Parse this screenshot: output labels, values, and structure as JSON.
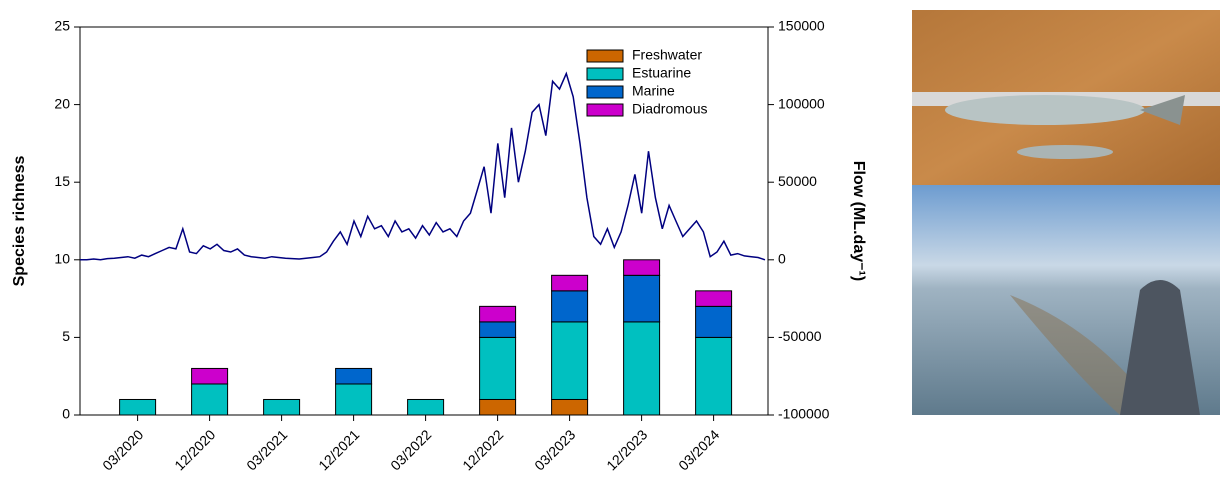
{
  "chart_data": {
    "type": "bar",
    "stacked": true,
    "y_label": "Species richness",
    "y2_label": "Flow (ML.day⁻¹)",
    "categories": [
      "03/2020",
      "12/2020",
      "03/2021",
      "12/2021",
      "03/2022",
      "12/2022",
      "03/2023",
      "12/2023",
      "03/2024"
    ],
    "series": [
      {
        "name": "Freshwater",
        "color": "#cc6600",
        "values": [
          0,
          0,
          0,
          0,
          0,
          1,
          1,
          0,
          0
        ]
      },
      {
        "name": "Estuarine",
        "color": "#00c0c0",
        "values": [
          1,
          2,
          1,
          2,
          1,
          4,
          5,
          6,
          5
        ]
      },
      {
        "name": "Marine",
        "color": "#0066cc",
        "values": [
          0,
          0,
          0,
          1,
          0,
          1,
          2,
          3,
          2
        ]
      },
      {
        "name": "Diadromous",
        "color": "#cc00cc",
        "values": [
          0,
          1,
          0,
          0,
          0,
          1,
          1,
          1,
          1
        ]
      }
    ],
    "flow": {
      "type": "line",
      "axis": "y2",
      "color": "#000080",
      "values": [
        0,
        0,
        500,
        0,
        800,
        1000,
        1500,
        2000,
        1000,
        3000,
        2000,
        4000,
        6000,
        8000,
        7000,
        20000,
        5000,
        4000,
        9000,
        7000,
        10000,
        6000,
        5000,
        7000,
        3000,
        2000,
        1500,
        1000,
        2000,
        1500,
        1000,
        800,
        500,
        1000,
        1500,
        2000,
        5000,
        12000,
        18000,
        10000,
        25000,
        15000,
        28000,
        20000,
        22000,
        15000,
        25000,
        18000,
        20000,
        14000,
        22000,
        16000,
        24000,
        18000,
        20000,
        15000,
        25000,
        30000,
        45000,
        60000,
        30000,
        75000,
        40000,
        85000,
        50000,
        70000,
        95000,
        100000,
        80000,
        115000,
        110000,
        120000,
        105000,
        75000,
        40000,
        15000,
        10000,
        20000,
        8000,
        18000,
        35000,
        55000,
        30000,
        70000,
        40000,
        20000,
        35000,
        25000,
        15000,
        20000,
        25000,
        18000,
        2000,
        5000,
        12000,
        3000,
        4000,
        2500,
        2000,
        1500,
        0
      ]
    },
    "ylim": [
      0,
      25
    ],
    "yticks": [
      0,
      5,
      10,
      15,
      20,
      25
    ],
    "y2lim": [
      -100000,
      150000
    ],
    "y2ticks": [
      -100000,
      -50000,
      0,
      50000,
      100000,
      150000
    ],
    "legend": "upper right"
  }
}
